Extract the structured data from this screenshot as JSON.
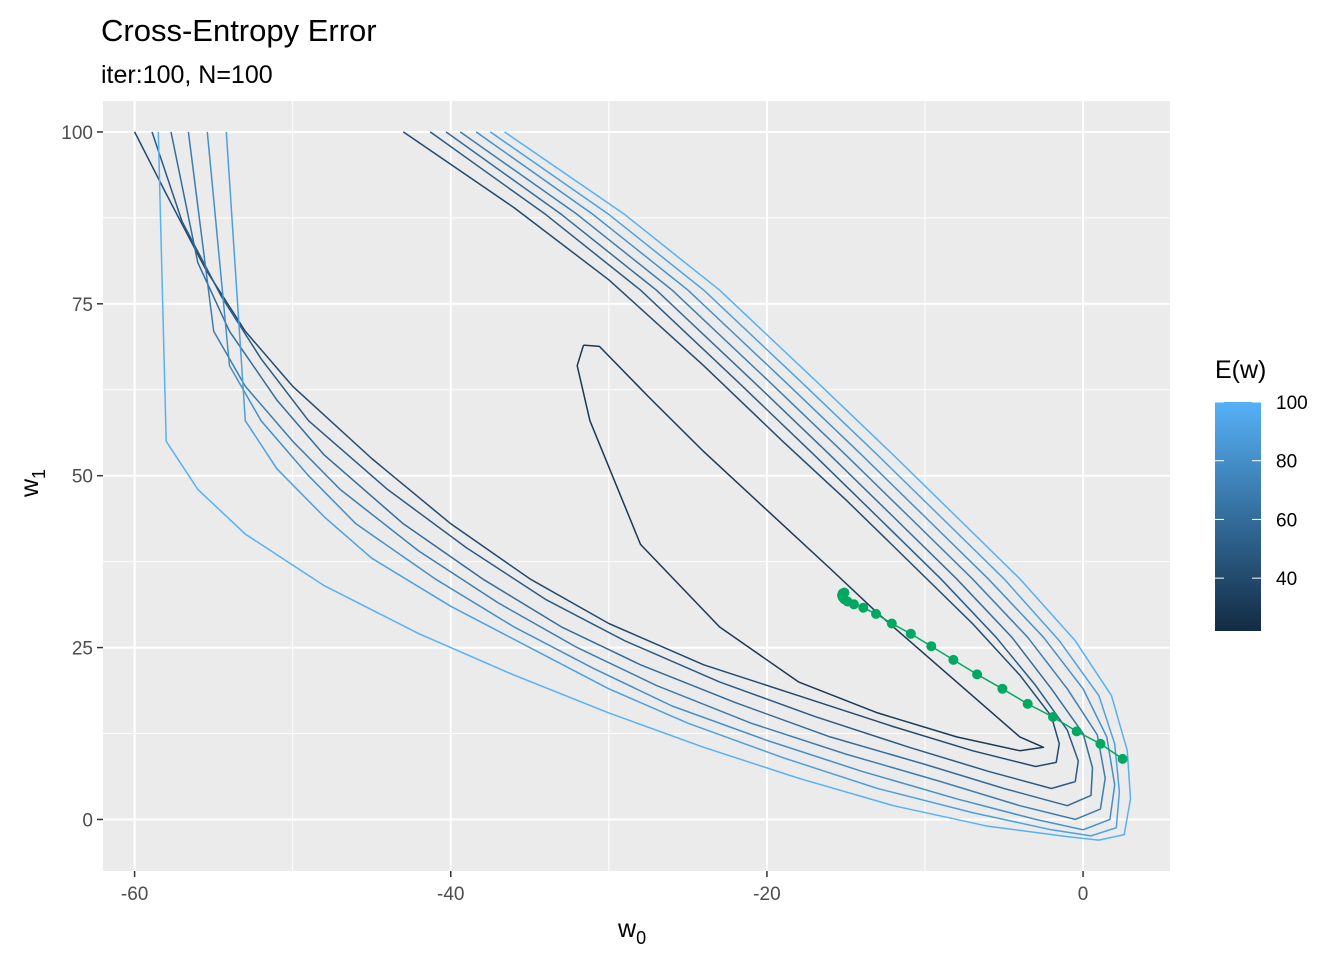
{
  "chart_data": {
    "type": "contour",
    "title": "Cross-Entropy Error",
    "subtitle": "iter:100, N=100",
    "xlabel": {
      "base": "w",
      "sub": "0"
    },
    "ylabel": {
      "base": "w",
      "sub": "1"
    },
    "xlim": [
      -62,
      5.5
    ],
    "ylim": [
      -7.5,
      104.5
    ],
    "x_ticks": [
      -60,
      -40,
      -20,
      0
    ],
    "x_tick_labels": [
      "-60",
      "-40",
      "-20",
      "0"
    ],
    "x_minor_ticks": [
      -50,
      -30,
      -10
    ],
    "y_ticks": [
      0,
      25,
      50,
      75,
      100
    ],
    "y_tick_labels": [
      "0",
      "25",
      "50",
      "75",
      "100"
    ],
    "y_minor_ticks": [
      12.5,
      37.5,
      62.5,
      87.5
    ],
    "grid": true,
    "panel_background": "#ebebeb",
    "legend": {
      "title": "E(w)",
      "position": "right",
      "range": [
        22,
        100
      ],
      "ticks": [
        40,
        60,
        80,
        100
      ],
      "tick_labels": [
        "40",
        "60",
        "80",
        "100"
      ],
      "low_color": "#132b43",
      "high_color": "#56b1f7"
    },
    "contour_levels": [
      {
        "level": 30,
        "points": [
          [
            -31.6,
            69
          ],
          [
            -30.6,
            68.8
          ],
          [
            -27.5,
            61.5
          ],
          [
            -24,
            53.5
          ],
          [
            -20,
            45
          ],
          [
            -16,
            36.5
          ],
          [
            -13,
            30
          ],
          [
            -9.5,
            23
          ],
          [
            -6.5,
            17
          ],
          [
            -4,
            12
          ],
          [
            -2.5,
            10.5
          ],
          [
            -4,
            10
          ],
          [
            -8,
            12
          ],
          [
            -13,
            15.5
          ],
          [
            -18,
            20
          ],
          [
            -23,
            28
          ],
          [
            -28,
            40
          ],
          [
            -31.2,
            58
          ],
          [
            -32,
            66
          ],
          [
            -31.6,
            69
          ]
        ]
      },
      {
        "level": 40,
        "points": [
          [
            -43,
            100
          ],
          [
            -36,
            89
          ],
          [
            -30,
            78.5
          ],
          [
            -24,
            66
          ],
          [
            -19,
            55
          ],
          [
            -15,
            46.5
          ],
          [
            -11,
            37.5
          ],
          [
            -7,
            28.5
          ],
          [
            -4,
            21
          ],
          [
            -2,
            15
          ],
          [
            -1.5,
            11
          ],
          [
            -1.7,
            8.3
          ],
          [
            -3,
            7.7
          ],
          [
            -7,
            10
          ],
          [
            -12,
            13.5
          ],
          [
            -18,
            18
          ],
          [
            -24,
            22.5
          ],
          [
            -30,
            28.5
          ],
          [
            -35,
            35
          ],
          [
            -40,
            43
          ],
          [
            -45,
            52.5
          ],
          [
            -50,
            63
          ],
          [
            -53,
            71
          ],
          [
            -55.5,
            80
          ],
          [
            -58,
            91
          ],
          [
            -60,
            100
          ]
        ]
      },
      {
        "level": 50,
        "points": [
          [
            -41.3,
            100
          ],
          [
            -34,
            88
          ],
          [
            -28,
            77
          ],
          [
            -22,
            64
          ],
          [
            -17,
            53
          ],
          [
            -13,
            44
          ],
          [
            -9,
            35
          ],
          [
            -5.5,
            26.5
          ],
          [
            -3,
            19.5
          ],
          [
            -1,
            13
          ],
          [
            -0.3,
            8.5
          ],
          [
            -0.5,
            5.5
          ],
          [
            -2,
            4.5
          ],
          [
            -6,
            7
          ],
          [
            -11,
            10.5
          ],
          [
            -17,
            15
          ],
          [
            -23,
            20
          ],
          [
            -29,
            26
          ],
          [
            -34,
            32
          ],
          [
            -39,
            39.5
          ],
          [
            -44,
            48
          ],
          [
            -49,
            58
          ],
          [
            -52,
            67
          ],
          [
            -54.5,
            76
          ],
          [
            -57,
            87
          ],
          [
            -58.9,
            100
          ]
        ]
      },
      {
        "level": 60,
        "points": [
          [
            -40.3,
            100
          ],
          [
            -33,
            88
          ],
          [
            -27,
            77
          ],
          [
            -21,
            64
          ],
          [
            -16,
            53
          ],
          [
            -12,
            44
          ],
          [
            -8,
            35
          ],
          [
            -4.5,
            26.5
          ],
          [
            -2,
            19
          ],
          [
            0,
            12.5
          ],
          [
            0.6,
            7.5
          ],
          [
            0.5,
            3.5
          ],
          [
            -1,
            2
          ],
          [
            -5,
            4.5
          ],
          [
            -10,
            8
          ],
          [
            -16,
            12
          ],
          [
            -22,
            17
          ],
          [
            -28,
            22.5
          ],
          [
            -33,
            28
          ],
          [
            -38,
            35
          ],
          [
            -43,
            43
          ],
          [
            -48,
            53
          ],
          [
            -51,
            61
          ],
          [
            -54,
            71
          ],
          [
            -56,
            81
          ],
          [
            -57.7,
            100
          ]
        ]
      },
      {
        "level": 70,
        "points": [
          [
            -39.4,
            100
          ],
          [
            -32,
            88
          ],
          [
            -26,
            77
          ],
          [
            -20,
            64
          ],
          [
            -15,
            53
          ],
          [
            -11,
            44
          ],
          [
            -7,
            35
          ],
          [
            -3.5,
            26.5
          ],
          [
            -1,
            19
          ],
          [
            0.9,
            12.3
          ],
          [
            1.4,
            6
          ],
          [
            1.1,
            1.5
          ],
          [
            -0.5,
            0
          ],
          [
            -4,
            2
          ],
          [
            -9,
            5.5
          ],
          [
            -15,
            9.5
          ],
          [
            -21,
            14
          ],
          [
            -27,
            19.5
          ],
          [
            -32,
            25
          ],
          [
            -37,
            31.5
          ],
          [
            -42,
            39
          ],
          [
            -47,
            48
          ],
          [
            -50,
            55
          ],
          [
            -53,
            63
          ],
          [
            -55,
            71
          ],
          [
            -56.6,
            100
          ]
        ]
      },
      {
        "level": 80,
        "points": [
          [
            -38.4,
            100
          ],
          [
            -31,
            88
          ],
          [
            -25,
            77
          ],
          [
            -19,
            64
          ],
          [
            -14,
            53
          ],
          [
            -10,
            44
          ],
          [
            -6,
            35
          ],
          [
            -2.5,
            26.5
          ],
          [
            0,
            19
          ],
          [
            1.5,
            12
          ],
          [
            2,
            5
          ],
          [
            1.7,
            0
          ],
          [
            0,
            -1.5
          ],
          [
            -3,
            0
          ],
          [
            -8,
            3
          ],
          [
            -14,
            7
          ],
          [
            -20,
            11.5
          ],
          [
            -26,
            16.5
          ],
          [
            -31,
            22
          ],
          [
            -36,
            28
          ],
          [
            -41,
            35
          ],
          [
            -46,
            43
          ],
          [
            -49,
            50
          ],
          [
            -52,
            58
          ],
          [
            -54,
            66
          ],
          [
            -55.4,
            100
          ]
        ]
      },
      {
        "level": 90,
        "points": [
          [
            -37.5,
            100
          ],
          [
            -30,
            88
          ],
          [
            -24,
            77
          ],
          [
            -18,
            64
          ],
          [
            -13,
            53
          ],
          [
            -9,
            44
          ],
          [
            -5,
            35
          ],
          [
            -1.5,
            26
          ],
          [
            1,
            18
          ],
          [
            2,
            11
          ],
          [
            2.3,
            4
          ],
          [
            2.1,
            -1.2
          ],
          [
            0.5,
            -2.4
          ],
          [
            -2,
            -1.5
          ],
          [
            -7,
            1
          ],
          [
            -13,
            4.5
          ],
          [
            -19,
            9
          ],
          [
            -25,
            14
          ],
          [
            -30,
            19
          ],
          [
            -35,
            25
          ],
          [
            -40,
            31
          ],
          [
            -45,
            38
          ],
          [
            -48,
            44
          ],
          [
            -51,
            51
          ],
          [
            -53,
            58
          ],
          [
            -54.2,
            100
          ]
        ]
      },
      {
        "level": 100,
        "points": [
          [
            -36.6,
            100
          ],
          [
            -29,
            88
          ],
          [
            -23,
            77
          ],
          [
            -17,
            64
          ],
          [
            -12,
            53
          ],
          [
            -8,
            44
          ],
          [
            -4,
            35
          ],
          [
            -0.5,
            26
          ],
          [
            1.8,
            18
          ],
          [
            2.8,
            10
          ],
          [
            3,
            3
          ],
          [
            2.6,
            -2.2
          ],
          [
            1,
            -3
          ],
          [
            -1,
            -2.5
          ],
          [
            -6,
            -1
          ],
          [
            -12,
            2
          ],
          [
            -18,
            6
          ],
          [
            -24,
            10.5
          ],
          [
            -30,
            15.5
          ],
          [
            -36,
            21
          ],
          [
            -42,
            27
          ],
          [
            -48,
            34
          ],
          [
            -53,
            41.5
          ],
          [
            -56,
            48
          ],
          [
            -58,
            55
          ],
          [
            -58.5,
            100
          ]
        ]
      }
    ],
    "path": {
      "color": "#00a862",
      "points": [
        [
          2.5,
          8.8
        ],
        [
          1.1,
          11
        ],
        [
          -0.4,
          12.8
        ],
        [
          -1.9,
          14.9
        ],
        [
          -3.5,
          16.8
        ],
        [
          -5.1,
          19
        ],
        [
          -6.7,
          21.1
        ],
        [
          -8.2,
          23.2
        ],
        [
          -9.6,
          25.2
        ],
        [
          -10.9,
          27
        ],
        [
          -12.1,
          28.5
        ],
        [
          -13.1,
          29.9
        ],
        [
          -13.9,
          30.8
        ],
        [
          -14.5,
          31.3
        ],
        [
          -14.9,
          31.7
        ],
        [
          -15.1,
          32
        ],
        [
          -15.2,
          32.3
        ],
        [
          -15.25,
          32.6
        ],
        [
          -15.2,
          32.9
        ],
        [
          -15.1,
          33
        ]
      ]
    }
  }
}
